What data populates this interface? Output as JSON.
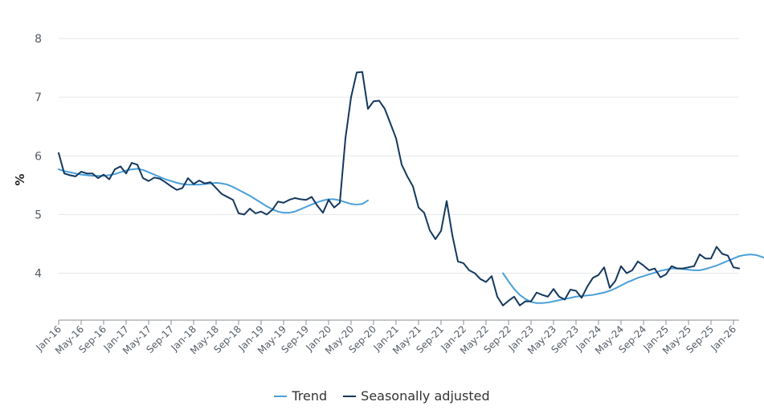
{
  "chart_data": {
    "type": "line",
    "title": "",
    "xlabel": "",
    "ylabel": "%",
    "ylim": [
      3.2,
      8.0
    ],
    "yticks": [
      "4",
      "5",
      "6",
      "7",
      "8"
    ],
    "xtick_labels": [
      "Jan-16",
      "May-16",
      "Sep-16",
      "Jan-17",
      "May-17",
      "Sep-17",
      "Jan-18",
      "May-18",
      "Sep-18",
      "Jan-19",
      "May-19",
      "Sep-19",
      "Jan-20",
      "May-20",
      "Sep-20",
      "Jan-21",
      "May-21",
      "Sep-21",
      "Jan-22",
      "May-22",
      "Sep-22",
      "Jan-23",
      "May-23",
      "Sep-23",
      "Jan-24",
      "May-24",
      "Sep-24",
      "Jan-25",
      "May-25",
      "Sep-25",
      "Jan-26"
    ],
    "x_start": "Jan-16",
    "x_end": "Jan-26",
    "grid": true,
    "legend_position": "bottom-center",
    "series": [
      {
        "name": "Trend",
        "color": "#4a9fd8",
        "values": [
          5.77,
          5.74,
          5.72,
          5.7,
          5.68,
          5.67,
          5.66,
          5.66,
          5.66,
          5.67,
          5.69,
          5.72,
          5.75,
          5.77,
          5.78,
          5.76,
          5.72,
          5.68,
          5.64,
          5.6,
          5.57,
          5.54,
          5.52,
          5.51,
          5.51,
          5.51,
          5.52,
          5.53,
          5.54,
          5.53,
          5.51,
          5.47,
          5.42,
          5.37,
          5.32,
          5.26,
          5.2,
          5.14,
          5.09,
          5.05,
          5.03,
          5.03,
          5.05,
          5.09,
          5.13,
          5.17,
          5.21,
          5.24,
          5.26,
          5.26,
          5.24,
          5.21,
          5.18,
          5.17,
          5.18,
          5.24,
          null,
          null,
          null,
          null,
          null,
          null,
          null,
          null,
          null,
          null,
          null,
          null,
          null,
          null,
          null,
          null,
          null,
          null,
          null,
          null,
          null,
          null,
          null,
          4.0,
          3.86,
          3.73,
          3.63,
          3.56,
          3.51,
          3.49,
          3.49,
          3.5,
          3.52,
          3.54,
          3.56,
          3.58,
          3.6,
          3.61,
          3.62,
          3.63,
          3.65,
          3.67,
          3.7,
          3.74,
          3.79,
          3.84,
          3.88,
          3.92,
          3.95,
          3.98,
          4.01,
          4.04,
          4.06,
          4.08,
          4.08,
          4.07,
          4.06,
          4.05,
          4.05,
          4.07,
          4.1,
          4.13,
          4.17,
          4.21,
          4.25,
          4.29,
          4.31,
          4.32,
          4.31,
          4.28,
          4.24,
          4.2,
          4.15
        ]
      },
      {
        "name": "Seasonally adjusted",
        "color": "#14385e",
        "values": [
          6.05,
          5.7,
          5.67,
          5.65,
          5.73,
          5.7,
          5.7,
          5.62,
          5.68,
          5.6,
          5.77,
          5.82,
          5.7,
          5.88,
          5.85,
          5.62,
          5.57,
          5.63,
          5.61,
          5.55,
          5.48,
          5.42,
          5.45,
          5.62,
          5.52,
          5.58,
          5.53,
          5.55,
          5.45,
          5.35,
          5.3,
          5.25,
          5.02,
          5.0,
          5.1,
          5.02,
          5.05,
          5.0,
          5.08,
          5.22,
          5.2,
          5.25,
          5.28,
          5.26,
          5.25,
          5.3,
          5.15,
          5.03,
          5.25,
          5.12,
          5.2,
          6.3,
          7.0,
          7.42,
          7.43,
          6.8,
          6.93,
          6.94,
          6.8,
          6.55,
          6.3,
          5.85,
          5.65,
          5.48,
          5.12,
          5.03,
          4.73,
          4.58,
          4.72,
          5.23,
          4.65,
          4.2,
          4.17,
          4.05,
          4.0,
          3.9,
          3.85,
          3.95,
          3.6,
          3.45,
          3.53,
          3.6,
          3.45,
          3.52,
          3.52,
          3.67,
          3.63,
          3.6,
          3.73,
          3.6,
          3.55,
          3.72,
          3.7,
          3.58,
          3.77,
          3.92,
          3.97,
          4.1,
          3.75,
          3.87,
          4.12,
          4.0,
          4.05,
          4.2,
          4.13,
          4.05,
          4.08,
          3.93,
          3.98,
          4.12,
          4.08,
          4.08,
          4.1,
          4.12,
          4.32,
          4.25,
          4.25,
          4.45,
          4.33,
          4.3,
          4.1,
          4.08
        ]
      }
    ]
  }
}
